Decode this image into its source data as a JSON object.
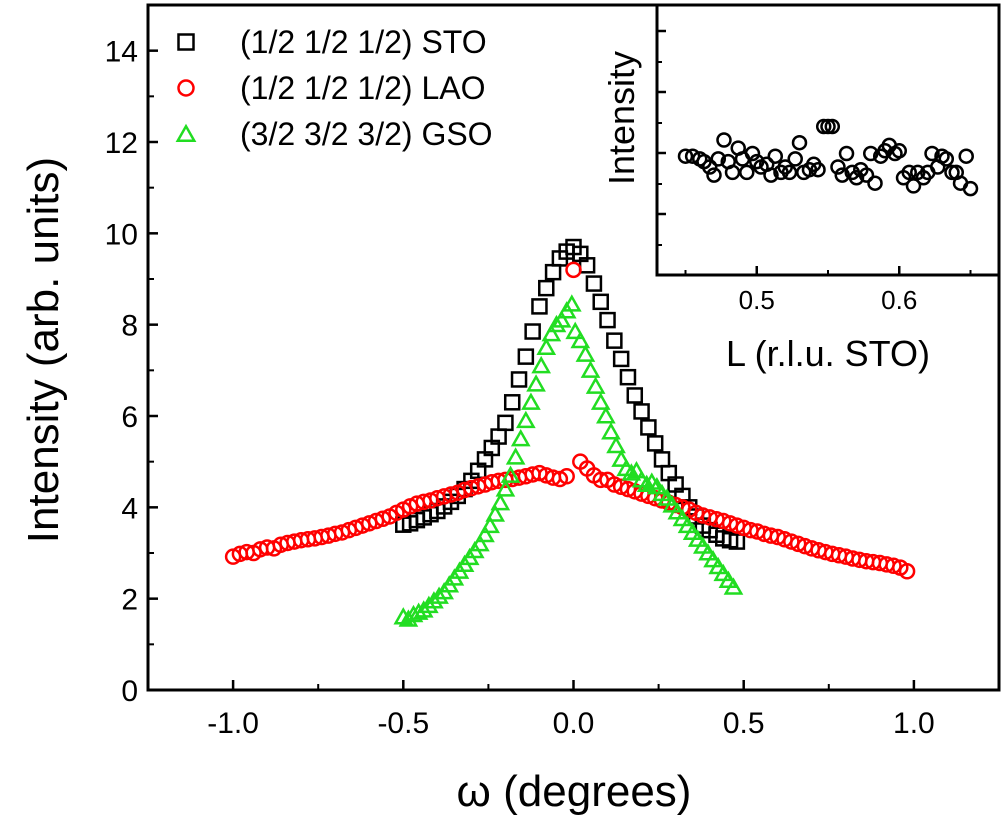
{
  "chart_data": [
    {
      "type": "scatter",
      "xlabel": "ω (degrees)",
      "ylabel": "Intensity (arb. units)",
      "xlim": [
        -1.25,
        1.25
      ],
      "ylim": [
        0,
        15
      ],
      "xticks": [
        -1.0,
        -0.5,
        0.0,
        0.5,
        1.0
      ],
      "xtick_labels": [
        "-1.0",
        "-0.5",
        "0.0",
        "0.5",
        "1.0"
      ],
      "yticks": [
        0,
        2,
        4,
        6,
        8,
        10,
        12,
        14
      ],
      "ytick_labels": [
        "0",
        "2",
        "4",
        "6",
        "8",
        "10",
        "12",
        "14"
      ],
      "legend_position": "top-left",
      "grid": false,
      "series": [
        {
          "name": "(1/2 1/2 1/2)  STO",
          "marker": "square",
          "color": "#000000",
          "x": [
            -0.5,
            -0.48,
            -0.46,
            -0.44,
            -0.42,
            -0.4,
            -0.38,
            -0.36,
            -0.34,
            -0.32,
            -0.3,
            -0.28,
            -0.26,
            -0.24,
            -0.22,
            -0.2,
            -0.18,
            -0.16,
            -0.14,
            -0.12,
            -0.1,
            -0.08,
            -0.06,
            -0.04,
            -0.02,
            0.0,
            0.02,
            0.04,
            0.06,
            0.08,
            0.1,
            0.12,
            0.14,
            0.16,
            0.18,
            0.2,
            0.22,
            0.24,
            0.26,
            0.28,
            0.3,
            0.32,
            0.34,
            0.36,
            0.38,
            0.4,
            0.42,
            0.44,
            0.46,
            0.48
          ],
          "y": [
            3.62,
            3.65,
            3.72,
            3.78,
            3.85,
            3.92,
            4.02,
            4.12,
            4.25,
            4.4,
            4.58,
            4.8,
            5.05,
            5.3,
            5.55,
            5.85,
            6.3,
            6.8,
            7.3,
            7.85,
            8.4,
            8.8,
            9.15,
            9.45,
            9.6,
            9.7,
            9.55,
            9.3,
            8.9,
            8.5,
            8.1,
            7.65,
            7.25,
            6.85,
            6.45,
            6.1,
            5.75,
            5.4,
            5.05,
            4.75,
            4.5,
            4.25,
            4.0,
            3.8,
            3.6,
            3.5,
            3.4,
            3.32,
            3.28,
            3.25
          ]
        },
        {
          "name": "(1/2 1/2 1/2)  LAO",
          "marker": "circle",
          "color": "#ff0000",
          "x": [
            -1.0,
            -0.98,
            -0.96,
            -0.94,
            -0.92,
            -0.9,
            -0.88,
            -0.86,
            -0.84,
            -0.82,
            -0.8,
            -0.78,
            -0.76,
            -0.74,
            -0.72,
            -0.7,
            -0.68,
            -0.66,
            -0.64,
            -0.62,
            -0.6,
            -0.58,
            -0.56,
            -0.54,
            -0.52,
            -0.5,
            -0.48,
            -0.46,
            -0.44,
            -0.42,
            -0.4,
            -0.38,
            -0.36,
            -0.34,
            -0.32,
            -0.3,
            -0.28,
            -0.26,
            -0.24,
            -0.22,
            -0.2,
            -0.18,
            -0.16,
            -0.14,
            -0.12,
            -0.1,
            -0.08,
            -0.06,
            -0.04,
            -0.02,
            0.0,
            0.02,
            0.04,
            0.06,
            0.08,
            0.1,
            0.12,
            0.14,
            0.16,
            0.18,
            0.2,
            0.22,
            0.24,
            0.26,
            0.28,
            0.3,
            0.32,
            0.34,
            0.36,
            0.38,
            0.4,
            0.42,
            0.44,
            0.46,
            0.48,
            0.5,
            0.52,
            0.54,
            0.56,
            0.58,
            0.6,
            0.62,
            0.64,
            0.66,
            0.68,
            0.7,
            0.72,
            0.74,
            0.76,
            0.78,
            0.8,
            0.82,
            0.84,
            0.86,
            0.88,
            0.9,
            0.92,
            0.94,
            0.96,
            0.98
          ],
          "y": [
            2.92,
            2.98,
            3.02,
            3.0,
            3.08,
            3.12,
            3.1,
            3.18,
            3.22,
            3.25,
            3.28,
            3.3,
            3.32,
            3.35,
            3.38,
            3.42,
            3.45,
            3.5,
            3.55,
            3.6,
            3.65,
            3.7,
            3.75,
            3.8,
            3.88,
            3.95,
            4.02,
            4.08,
            4.12,
            4.15,
            4.2,
            4.24,
            4.28,
            4.32,
            4.38,
            4.42,
            4.46,
            4.5,
            4.55,
            4.58,
            4.6,
            4.62,
            4.65,
            4.68,
            4.72,
            4.75,
            4.7,
            4.65,
            4.62,
            4.68,
            9.2,
            5.0,
            4.85,
            4.7,
            4.6,
            4.6,
            4.5,
            4.45,
            4.4,
            4.35,
            4.3,
            4.25,
            4.2,
            4.15,
            4.1,
            4.05,
            4.0,
            3.95,
            3.88,
            3.82,
            3.78,
            3.74,
            3.7,
            3.65,
            3.6,
            3.55,
            3.5,
            3.47,
            3.42,
            3.38,
            3.35,
            3.3,
            3.25,
            3.2,
            3.15,
            3.1,
            3.06,
            3.02,
            2.98,
            2.95,
            2.92,
            2.88,
            2.85,
            2.82,
            2.8,
            2.78,
            2.75,
            2.72,
            2.68,
            2.6
          ]
        },
        {
          "name": "(3/2 3/2 3/2)  GSO",
          "marker": "triangle",
          "color": "#22dd22",
          "x": [
            -0.5,
            -0.485,
            -0.47,
            -0.455,
            -0.44,
            -0.425,
            -0.41,
            -0.395,
            -0.38,
            -0.365,
            -0.35,
            -0.335,
            -0.32,
            -0.305,
            -0.29,
            -0.275,
            -0.26,
            -0.245,
            -0.23,
            -0.215,
            -0.2,
            -0.185,
            -0.17,
            -0.155,
            -0.14,
            -0.125,
            -0.11,
            -0.095,
            -0.08,
            -0.065,
            -0.05,
            -0.035,
            -0.02,
            -0.005,
            0.005,
            0.02,
            0.035,
            0.05,
            0.065,
            0.08,
            0.095,
            0.11,
            0.125,
            0.14,
            0.155,
            0.17,
            0.185,
            0.2,
            0.215,
            0.23,
            0.245,
            0.26,
            0.275,
            0.29,
            0.305,
            0.32,
            0.335,
            0.35,
            0.365,
            0.38,
            0.395,
            0.41,
            0.425,
            0.44,
            0.455,
            0.47
          ],
          "y": [
            1.6,
            1.55,
            1.65,
            1.7,
            1.75,
            1.85,
            1.95,
            2.05,
            2.15,
            2.3,
            2.45,
            2.6,
            2.75,
            2.9,
            3.05,
            3.2,
            3.4,
            3.6,
            3.85,
            4.1,
            4.4,
            4.7,
            5.1,
            5.5,
            5.9,
            6.3,
            6.7,
            7.1,
            7.5,
            7.8,
            8.0,
            8.1,
            8.3,
            8.45,
            7.85,
            7.65,
            7.35,
            7.0,
            6.65,
            6.3,
            6.0,
            5.65,
            5.35,
            5.05,
            4.85,
            4.75,
            4.8,
            4.6,
            4.5,
            4.55,
            4.45,
            4.3,
            4.2,
            4.05,
            3.9,
            3.75,
            3.6,
            3.45,
            3.3,
            3.15,
            3.0,
            2.85,
            2.7,
            2.55,
            2.4,
            2.25
          ]
        }
      ]
    },
    {
      "type": "scatter",
      "xlabel": "L (r.l.u. STO)",
      "ylabel": "Intensity",
      "xlim": [
        0.43,
        0.67
      ],
      "ylim": [
        0,
        1
      ],
      "xticks": [
        0.5,
        0.6
      ],
      "xtick_labels": [
        "0.5",
        "0.6"
      ],
      "series": [
        {
          "marker": "circle",
          "color": "#000000",
          "x": [
            0.45,
            0.455,
            0.46,
            0.463,
            0.467,
            0.47,
            0.473,
            0.477,
            0.48,
            0.483,
            0.487,
            0.49,
            0.493,
            0.497,
            0.5,
            0.503,
            0.507,
            0.51,
            0.513,
            0.517,
            0.52,
            0.523,
            0.527,
            0.53,
            0.533,
            0.537,
            0.54,
            0.543,
            0.547,
            0.55,
            0.553,
            0.557,
            0.56,
            0.563,
            0.567,
            0.57,
            0.573,
            0.577,
            0.58,
            0.583,
            0.587,
            0.59,
            0.593,
            0.597,
            0.6,
            0.603,
            0.607,
            0.61,
            0.613,
            0.617,
            0.62,
            0.623,
            0.627,
            0.63,
            0.633,
            0.637,
            0.64,
            0.643,
            0.647,
            0.65
          ],
          "y": [
            0.44,
            0.44,
            0.43,
            0.42,
            0.4,
            0.37,
            0.43,
            0.5,
            0.42,
            0.38,
            0.47,
            0.43,
            0.38,
            0.45,
            0.42,
            0.4,
            0.41,
            0.37,
            0.44,
            0.38,
            0.4,
            0.38,
            0.43,
            0.49,
            0.38,
            0.39,
            0.41,
            0.39,
            0.55,
            0.55,
            0.55,
            0.4,
            0.37,
            0.45,
            0.38,
            0.36,
            0.39,
            0.37,
            0.45,
            0.34,
            0.44,
            0.46,
            0.48,
            0.45,
            0.46,
            0.36,
            0.38,
            0.33,
            0.38,
            0.36,
            0.38,
            0.45,
            0.4,
            0.44,
            0.43,
            0.38,
            0.38,
            0.34,
            0.44,
            0.32
          ]
        }
      ]
    }
  ]
}
